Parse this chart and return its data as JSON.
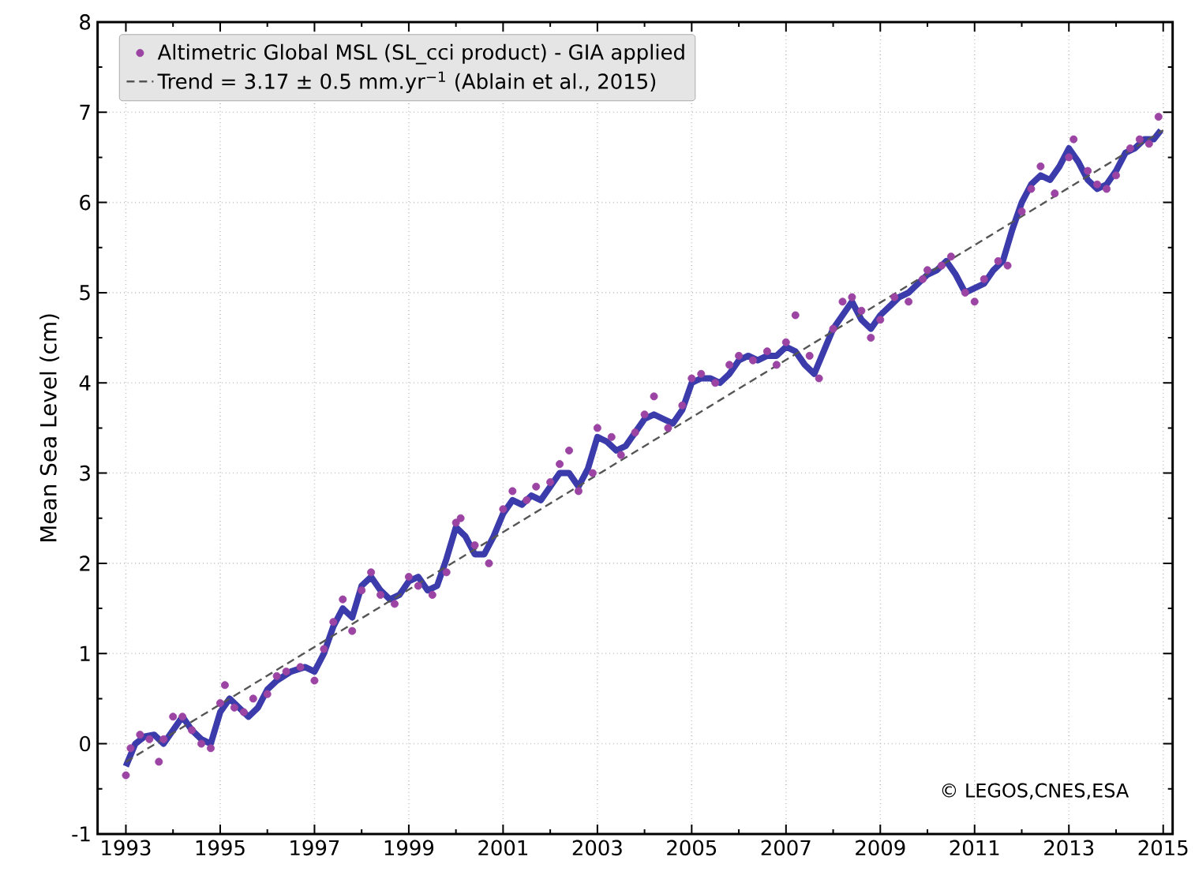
{
  "chart_data": {
    "type": "scatter",
    "ylabel": "Mean Sea Level (cm)",
    "xlim": [
      1992.4,
      2015.2
    ],
    "ylim": [
      -1,
      8
    ],
    "xticks": [
      1993,
      1995,
      1997,
      1999,
      2001,
      2003,
      2005,
      2007,
      2009,
      2011,
      2013,
      2015
    ],
    "yticks": [
      -1,
      0,
      1,
      2,
      3,
      4,
      5,
      6,
      7,
      8
    ],
    "grid": true,
    "legend": "top left",
    "annotations": [
      "© LEGOS,CNES,ESA"
    ],
    "series": [
      {
        "type": "line",
        "color": "#3b3bab",
        "marker": "none",
        "line_style": "solid",
        "x": [
          1993.0,
          1993.2,
          1993.4,
          1993.6,
          1993.8,
          1994.0,
          1994.2,
          1994.4,
          1994.6,
          1994.8,
          1995.0,
          1995.2,
          1995.4,
          1995.6,
          1995.8,
          1996.0,
          1996.2,
          1996.5,
          1996.8,
          1997.0,
          1997.2,
          1997.4,
          1997.6,
          1997.8,
          1998.0,
          1998.2,
          1998.4,
          1998.6,
          1998.8,
          1999.0,
          1999.2,
          1999.4,
          1999.6,
          1999.8,
          2000.0,
          2000.2,
          2000.4,
          2000.6,
          2000.8,
          2001.0,
          2001.2,
          2001.4,
          2001.6,
          2001.8,
          2002.0,
          2002.2,
          2002.4,
          2002.6,
          2002.8,
          2003.0,
          2003.2,
          2003.4,
          2003.6,
          2003.8,
          2004.0,
          2004.2,
          2004.4,
          2004.6,
          2004.8,
          2005.0,
          2005.2,
          2005.4,
          2005.6,
          2005.8,
          2006.0,
          2006.2,
          2006.4,
          2006.6,
          2006.8,
          2007.0,
          2007.2,
          2007.4,
          2007.6,
          2007.8,
          2008.0,
          2008.2,
          2008.4,
          2008.6,
          2008.8,
          2009.0,
          2009.2,
          2009.4,
          2009.6,
          2009.8,
          2010.0,
          2010.2,
          2010.4,
          2010.6,
          2010.8,
          2011.0,
          2011.2,
          2011.4,
          2011.6,
          2011.8,
          2012.0,
          2012.2,
          2012.4,
          2012.6,
          2012.8,
          2013.0,
          2013.2,
          2013.4,
          2013.6,
          2013.8,
          2014.0,
          2014.2,
          2014.4,
          2014.6,
          2014.8,
          2014.95
        ],
        "values": [
          -0.25,
          0.0,
          0.08,
          0.1,
          0.0,
          0.15,
          0.3,
          0.15,
          0.05,
          0.0,
          0.35,
          0.5,
          0.4,
          0.3,
          0.4,
          0.6,
          0.7,
          0.8,
          0.85,
          0.8,
          1.0,
          1.3,
          1.5,
          1.4,
          1.75,
          1.85,
          1.7,
          1.6,
          1.65,
          1.8,
          1.85,
          1.7,
          1.75,
          2.05,
          2.4,
          2.3,
          2.1,
          2.1,
          2.3,
          2.55,
          2.7,
          2.65,
          2.75,
          2.7,
          2.85,
          3.0,
          3.0,
          2.85,
          3.05,
          3.4,
          3.35,
          3.25,
          3.3,
          3.45,
          3.6,
          3.65,
          3.6,
          3.55,
          3.7,
          4.0,
          4.05,
          4.05,
          4.0,
          4.1,
          4.25,
          4.3,
          4.25,
          4.3,
          4.3,
          4.4,
          4.35,
          4.2,
          4.1,
          4.35,
          4.6,
          4.75,
          4.9,
          4.7,
          4.6,
          4.75,
          4.85,
          4.95,
          5.0,
          5.1,
          5.2,
          5.25,
          5.35,
          5.2,
          5.0,
          5.05,
          5.1,
          5.25,
          5.35,
          5.7,
          6.0,
          6.2,
          6.3,
          6.25,
          6.4,
          6.6,
          6.45,
          6.25,
          6.15,
          6.2,
          6.35,
          6.55,
          6.6,
          6.7,
          6.7,
          6.8
        ]
      },
      {
        "name": "Altimetric Global MSL (SL_cci product) - GIA applied",
        "color": "#9b44a3",
        "marker": "circle",
        "x": [
          1993.0,
          1993.1,
          1993.3,
          1993.5,
          1993.7,
          1993.8,
          1994.0,
          1994.2,
          1994.4,
          1994.6,
          1994.8,
          1995.0,
          1995.1,
          1995.3,
          1995.5,
          1995.7,
          1996.0,
          1996.2,
          1996.4,
          1996.7,
          1997.0,
          1997.2,
          1997.4,
          1997.6,
          1997.8,
          1998.0,
          1998.2,
          1998.4,
          1998.7,
          1999.0,
          1999.2,
          1999.5,
          1999.8,
          2000.0,
          2000.1,
          2000.4,
          2000.7,
          2001.0,
          2001.2,
          2001.5,
          2001.7,
          2002.0,
          2002.2,
          2002.4,
          2002.6,
          2002.9,
          2003.0,
          2003.3,
          2003.5,
          2003.8,
          2004.0,
          2004.2,
          2004.5,
          2004.8,
          2005.0,
          2005.2,
          2005.5,
          2005.8,
          2006.0,
          2006.3,
          2006.6,
          2006.8,
          2007.0,
          2007.2,
          2007.5,
          2007.7,
          2008.0,
          2008.2,
          2008.4,
          2008.6,
          2008.8,
          2009.0,
          2009.3,
          2009.6,
          2009.9,
          2010.0,
          2010.3,
          2010.5,
          2010.8,
          2011.0,
          2011.2,
          2011.5,
          2011.7,
          2012.0,
          2012.2,
          2012.4,
          2012.7,
          2013.0,
          2013.1,
          2013.4,
          2013.6,
          2013.8,
          2014.0,
          2014.3,
          2014.5,
          2014.7,
          2014.9
        ],
        "values": [
          -0.35,
          -0.05,
          0.1,
          0.05,
          -0.2,
          0.05,
          0.3,
          0.3,
          0.15,
          0.0,
          -0.05,
          0.45,
          0.65,
          0.4,
          0.35,
          0.5,
          0.55,
          0.75,
          0.8,
          0.85,
          0.7,
          1.05,
          1.35,
          1.6,
          1.25,
          1.7,
          1.9,
          1.65,
          1.55,
          1.85,
          1.75,
          1.65,
          1.9,
          2.45,
          2.5,
          2.2,
          2.0,
          2.6,
          2.8,
          2.7,
          2.85,
          2.9,
          3.1,
          3.25,
          2.8,
          3.0,
          3.5,
          3.4,
          3.2,
          3.45,
          3.65,
          3.85,
          3.5,
          3.75,
          4.05,
          4.1,
          4.0,
          4.2,
          4.3,
          4.25,
          4.35,
          4.2,
          4.45,
          4.75,
          4.3,
          4.05,
          4.6,
          4.9,
          4.95,
          4.8,
          4.5,
          4.7,
          4.95,
          4.9,
          5.15,
          5.25,
          5.3,
          5.4,
          5.0,
          4.9,
          5.15,
          5.35,
          5.3,
          5.9,
          6.15,
          6.4,
          6.1,
          6.5,
          6.7,
          6.35,
          6.2,
          6.15,
          6.3,
          6.6,
          6.7,
          6.65,
          6.95
        ]
      },
      {
        "type": "line",
        "name": "Trend = 3.17 ± 0.5 mm.yr$^{−1}$ (Ablain et al., 2015)",
        "color": "#555555",
        "marker": "none",
        "line_style": "dashed",
        "x": [
          1993,
          2015
        ],
        "values": [
          -0.2,
          6.8
        ]
      }
    ]
  }
}
